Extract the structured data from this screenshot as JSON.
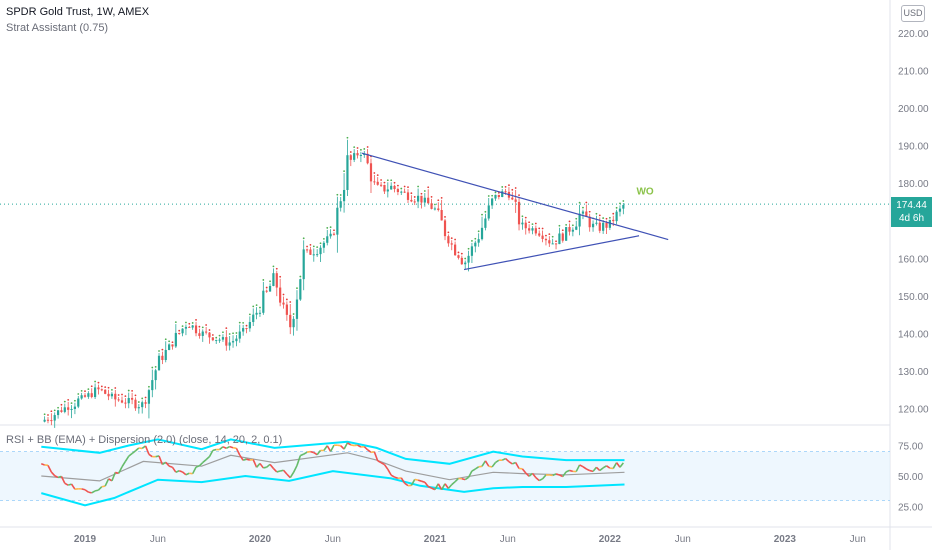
{
  "header": {
    "symbol": "SPDR Gold Trust, 1W, AMEX",
    "indicator_1": "Strat Assistant (0.75)",
    "indicator_2": "RSI + BB (EMA) + Dispersion (2.0) (close, 14, 20, 2, 0.1)",
    "currency": "USD"
  },
  "price_badge": {
    "price": "174.44",
    "countdown": "4d 6h"
  },
  "annotation": "WO",
  "colors": {
    "up": "#26a69a",
    "down": "#ef5350",
    "trendline": "#3f51b5",
    "bb_band": "#00e5ff",
    "rsi_up": "#66bb6a",
    "rsi_down": "#ef5350",
    "rsi_mid": "#ffb74d",
    "rsi_basis": "#9e9e9e",
    "price_line": "#26a69a"
  },
  "chart_data": [
    {
      "type": "candlestick",
      "title": "SPDR Gold Trust, 1W, AMEX",
      "x_ticks": [
        "2019",
        "Jun",
        "2020",
        "Jun",
        "2021",
        "Jun",
        "2022",
        "Jun",
        "2023",
        "Jun"
      ],
      "y_ticks": [
        "220.00",
        "210.00",
        "200.00",
        "190.00",
        "180.00",
        "170.00",
        "160.00",
        "150.00",
        "140.00",
        "130.00",
        "120.00"
      ],
      "ylim": [
        116,
        224
      ],
      "last_price": 174.44,
      "weekly_close_path": [
        [
          "2018-10",
          116.5
        ],
        [
          "2018-12",
          121
        ],
        [
          "2019-02",
          125
        ],
        [
          "2019-03",
          122.5
        ],
        [
          "2019-05",
          121
        ],
        [
          "2019-06",
          132
        ],
        [
          "2019-08",
          143
        ],
        [
          "2019-09",
          140
        ],
        [
          "2019-11",
          137.5
        ],
        [
          "2019-12",
          141
        ],
        [
          "2020-01",
          147
        ],
        [
          "2020-02",
          155
        ],
        [
          "2020-03",
          140.5
        ],
        [
          "2020-04",
          160.5
        ],
        [
          "2020-05",
          163
        ],
        [
          "2020-06",
          166
        ],
        [
          "2020-07",
          185
        ],
        [
          "2020-08",
          189
        ],
        [
          "2020-09",
          178
        ],
        [
          "2020-10",
          179
        ],
        [
          "2020-11",
          177
        ],
        [
          "2020-12",
          176
        ],
        [
          "2021-01",
          173
        ],
        [
          "2021-02",
          164.5
        ],
        [
          "2021-03",
          158.5
        ],
        [
          "2021-04",
          166
        ],
        [
          "2021-05",
          176
        ],
        [
          "2021-06",
          178
        ],
        [
          "2021-07",
          168.5
        ],
        [
          "2021-08",
          167.5
        ],
        [
          "2021-09",
          164
        ],
        [
          "2021-10",
          166.5
        ],
        [
          "2021-11",
          172
        ],
        [
          "2021-12",
          168
        ],
        [
          "2022-01",
          169
        ],
        [
          "2022-02",
          174.44
        ]
      ],
      "trendlines": [
        {
          "name": "upper",
          "from": [
            "2020-08",
            188
          ],
          "to": [
            "2022-05",
            165
          ]
        },
        {
          "name": "lower",
          "from": [
            "2021-03",
            157
          ],
          "to": [
            "2022-03",
            166
          ]
        }
      ]
    },
    {
      "type": "line",
      "title": "RSI + BB (EMA) + Dispersion (2.0) (close, 14, 20, 2, 0.1)",
      "y_ticks": [
        "75.00",
        "50.00",
        "25.00"
      ],
      "ylim": [
        18,
        82
      ],
      "rsi_path": [
        [
          "2018-10",
          60
        ],
        [
          "2018-11",
          52
        ],
        [
          "2018-12",
          42
        ],
        [
          "2019-01",
          36
        ],
        [
          "2019-02",
          39
        ],
        [
          "2019-03",
          50
        ],
        [
          "2019-04",
          66
        ],
        [
          "2019-05",
          74
        ],
        [
          "2019-06",
          65
        ],
        [
          "2019-07",
          55
        ],
        [
          "2019-08",
          50
        ],
        [
          "2019-09",
          58
        ],
        [
          "2019-10",
          73
        ],
        [
          "2019-11",
          75
        ],
        [
          "2019-12",
          63
        ],
        [
          "2020-01",
          59
        ],
        [
          "2020-02",
          57
        ],
        [
          "2020-03",
          50
        ],
        [
          "2020-04",
          68
        ],
        [
          "2020-05",
          70
        ],
        [
          "2020-06",
          73
        ],
        [
          "2020-07",
          75
        ],
        [
          "2020-08",
          74
        ],
        [
          "2020-09",
          66
        ],
        [
          "2020-10",
          52
        ],
        [
          "2020-11",
          45
        ],
        [
          "2020-12",
          44
        ],
        [
          "2021-01",
          40
        ],
        [
          "2021-02",
          43
        ],
        [
          "2021-03",
          47
        ],
        [
          "2021-04",
          60
        ],
        [
          "2021-05",
          60
        ],
        [
          "2021-06",
          63
        ],
        [
          "2021-07",
          55
        ],
        [
          "2021-08",
          48
        ],
        [
          "2021-09",
          49
        ],
        [
          "2021-10",
          52
        ],
        [
          "2021-11",
          58
        ],
        [
          "2021-12",
          56
        ],
        [
          "2022-01",
          57
        ],
        [
          "2022-02",
          60
        ]
      ],
      "bb_upper_path": [
        [
          "2018-10",
          74
        ],
        [
          "2019-02",
          69
        ],
        [
          "2019-04",
          75
        ],
        [
          "2019-06",
          80
        ],
        [
          "2019-09",
          72
        ],
        [
          "2019-11",
          80
        ],
        [
          "2020-02",
          73
        ],
        [
          "2020-07",
          78
        ],
        [
          "2020-09",
          73
        ],
        [
          "2020-11",
          64
        ],
        [
          "2021-02",
          60
        ],
        [
          "2021-05",
          70
        ],
        [
          "2021-07",
          66
        ],
        [
          "2021-10",
          63
        ],
        [
          "2022-02",
          63
        ]
      ],
      "bb_basis_path": [
        [
          "2018-10",
          50
        ],
        [
          "2019-02",
          46
        ],
        [
          "2019-05",
          62
        ],
        [
          "2019-09",
          58
        ],
        [
          "2019-11",
          67
        ],
        [
          "2020-02",
          61
        ],
        [
          "2020-07",
          69
        ],
        [
          "2020-09",
          63
        ],
        [
          "2020-11",
          54
        ],
        [
          "2021-02",
          47
        ],
        [
          "2021-05",
          53
        ],
        [
          "2021-07",
          52
        ],
        [
          "2021-10",
          51
        ],
        [
          "2022-02",
          53
        ]
      ],
      "bb_lower_path": [
        [
          "2018-10",
          36
        ],
        [
          "2019-01",
          26
        ],
        [
          "2019-03",
          32
        ],
        [
          "2019-06",
          47
        ],
        [
          "2019-09",
          45
        ],
        [
          "2019-12",
          50
        ],
        [
          "2020-03",
          46
        ],
        [
          "2020-06",
          54
        ],
        [
          "2020-10",
          48
        ],
        [
          "2020-12",
          42
        ],
        [
          "2021-03",
          37
        ],
        [
          "2021-05",
          40
        ],
        [
          "2021-07",
          41
        ],
        [
          "2021-10",
          41
        ],
        [
          "2022-02",
          43
        ]
      ],
      "reference_band": [
        30,
        70
      ]
    }
  ]
}
